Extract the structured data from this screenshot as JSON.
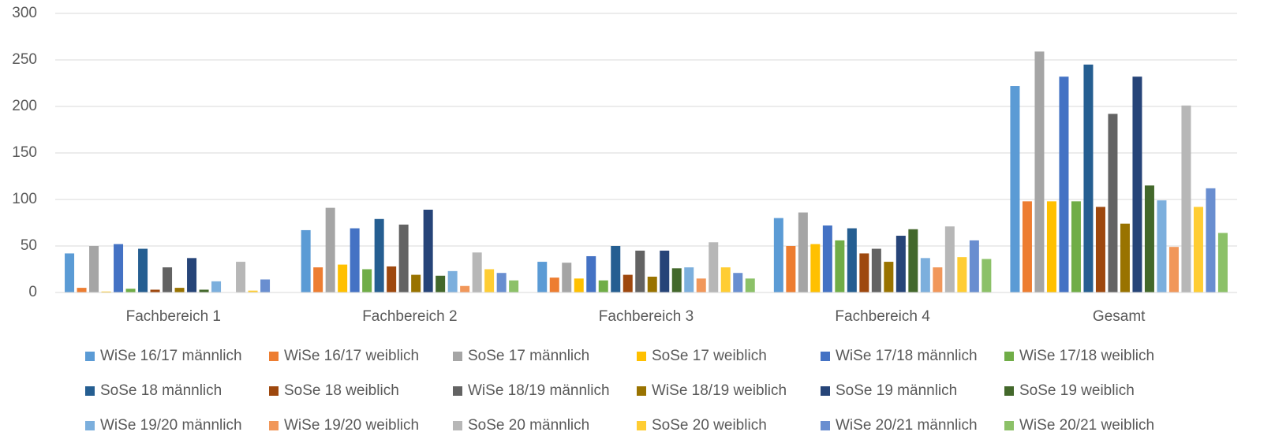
{
  "chart_data": {
    "type": "bar",
    "categories": [
      "Fachbereich 1",
      "Fachbereich 2",
      "Fachbereich 3",
      "Fachbereich 4",
      "Gesamt"
    ],
    "ylim": [
      0,
      300
    ],
    "yticks": [
      0,
      50,
      100,
      150,
      200,
      250,
      300
    ],
    "grid": true,
    "legend": "bottom",
    "series": [
      {
        "name": "WiSe 16/17 männlich",
        "color": "#5b9bd5",
        "values": [
          42,
          67,
          33,
          80,
          222
        ]
      },
      {
        "name": "WiSe 16/17 weiblich",
        "color": "#ed7d31",
        "values": [
          5,
          27,
          16,
          50,
          98
        ]
      },
      {
        "name": "SoSe 17 männlich",
        "color": "#a5a5a5",
        "values": [
          50,
          91,
          32,
          86,
          259
        ]
      },
      {
        "name": "SoSe 17 weiblich",
        "color": "#ffc000",
        "values": [
          1,
          30,
          15,
          52,
          98
        ]
      },
      {
        "name": "WiSe 17/18 männlich",
        "color": "#4472c4",
        "values": [
          52,
          69,
          39,
          72,
          232
        ]
      },
      {
        "name": "WiSe 17/18 weiblich",
        "color": "#70ad47",
        "values": [
          4,
          25,
          13,
          56,
          98
        ]
      },
      {
        "name": "SoSe 18 männlich",
        "color": "#255e91",
        "values": [
          47,
          79,
          50,
          69,
          245
        ]
      },
      {
        "name": "SoSe 18 weiblich",
        "color": "#9e480e",
        "values": [
          3,
          28,
          19,
          42,
          92
        ]
      },
      {
        "name": "WiSe 18/19 männlich",
        "color": "#636363",
        "values": [
          27,
          73,
          45,
          47,
          192
        ]
      },
      {
        "name": "WiSe 18/19 weiblich",
        "color": "#997300",
        "values": [
          5,
          19,
          17,
          33,
          74
        ]
      },
      {
        "name": "SoSe 19 männlich",
        "color": "#264478",
        "values": [
          37,
          89,
          45,
          61,
          232
        ]
      },
      {
        "name": "SoSe 19 weiblich",
        "color": "#43682b",
        "values": [
          3,
          18,
          26,
          68,
          115
        ]
      },
      {
        "name": "WiSe 19/20 männlich",
        "color": "#7cafdd",
        "values": [
          12,
          23,
          27,
          37,
          99
        ]
      },
      {
        "name": "WiSe 19/20 weiblich",
        "color": "#f1975a",
        "values": [
          0,
          7,
          15,
          27,
          49
        ]
      },
      {
        "name": "SoSe 20 männlich",
        "color": "#b7b7b7",
        "values": [
          33,
          43,
          54,
          71,
          201
        ]
      },
      {
        "name": "SoSe 20 weiblich",
        "color": "#ffcd33",
        "values": [
          2,
          25,
          27,
          38,
          92
        ]
      },
      {
        "name": "WiSe 20/21 männlich",
        "color": "#698ed0",
        "values": [
          14,
          21,
          21,
          56,
          112
        ]
      },
      {
        "name": "WiSe 20/21 weiblich",
        "color": "#8cc168",
        "values": [
          0,
          13,
          15,
          36,
          64
        ]
      }
    ]
  }
}
